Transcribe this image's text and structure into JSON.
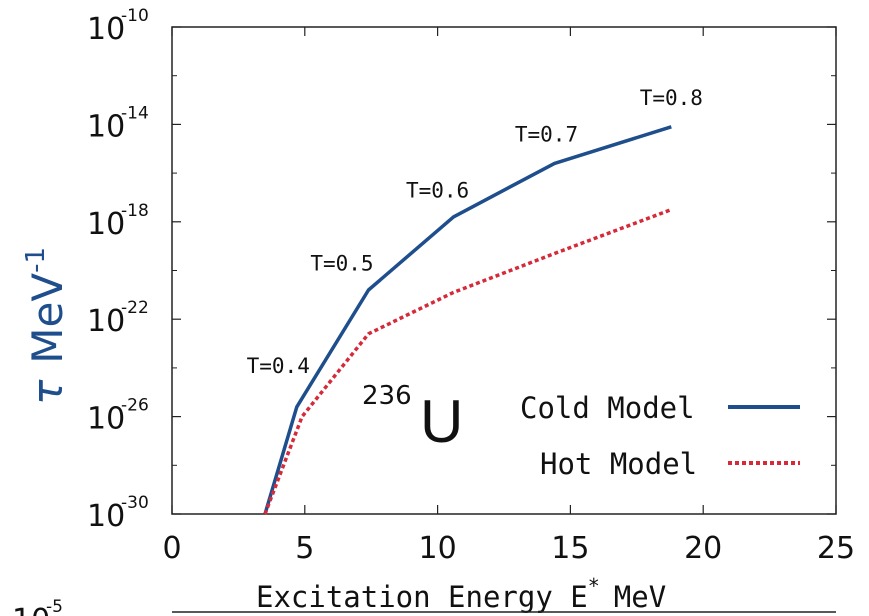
{
  "chart_data": {
    "type": "line",
    "xlabel": "Excitation Energy E* MeV",
    "xlabel_main": "Excitation Energy E",
    "xlabel_sup": "*",
    "xlabel_unit": "MeV",
    "ylabel_symbol": "τ",
    "ylabel_unit": "MeV",
    "ylabel_sup": "-1",
    "xlim": [
      0,
      25
    ],
    "ylim_exp": [
      -30,
      -10
    ],
    "yscale": "log",
    "x_ticks": [
      "0",
      "5",
      "10",
      "15",
      "20",
      "25"
    ],
    "y_tick_base": "10",
    "y_tick_exps": [
      "-10",
      "-14",
      "-18",
      "-22",
      "-26",
      "-30"
    ],
    "series": [
      {
        "name": "Cold Model",
        "color": "#1f4e8c",
        "style": "solid",
        "points": [
          [
            3.5,
            -30
          ],
          [
            4.7,
            -25.6
          ],
          [
            7.4,
            -20.8
          ],
          [
            10.6,
            -17.8
          ],
          [
            14.4,
            -15.6
          ],
          [
            18.8,
            -14.1
          ]
        ]
      },
      {
        "name": "Hot Model",
        "color": "#d62a3a",
        "style": "dotted",
        "points": [
          [
            3.5,
            -30
          ],
          [
            4.9,
            -26.0
          ],
          [
            7.4,
            -22.6
          ],
          [
            10.6,
            -20.9
          ],
          [
            14.4,
            -19.3
          ],
          [
            18.8,
            -17.5
          ]
        ]
      }
    ],
    "annotations": [
      {
        "text": "T=0.4",
        "x": 4.0,
        "y": -24.2
      },
      {
        "text": "T=0.5",
        "x": 6.4,
        "y": -20.0
      },
      {
        "text": "T=0.6",
        "x": 10.0,
        "y": -17.0
      },
      {
        "text": "T=0.7",
        "x": 14.1,
        "y": -14.7
      },
      {
        "text": "T=0.8",
        "x": 18.8,
        "y": -13.2
      }
    ],
    "isotope": {
      "mass": "236",
      "element": "U"
    },
    "legend_position": "lower-right",
    "grid": false,
    "bottom_fragment": {
      "base": "10",
      "exp": "-5"
    }
  }
}
